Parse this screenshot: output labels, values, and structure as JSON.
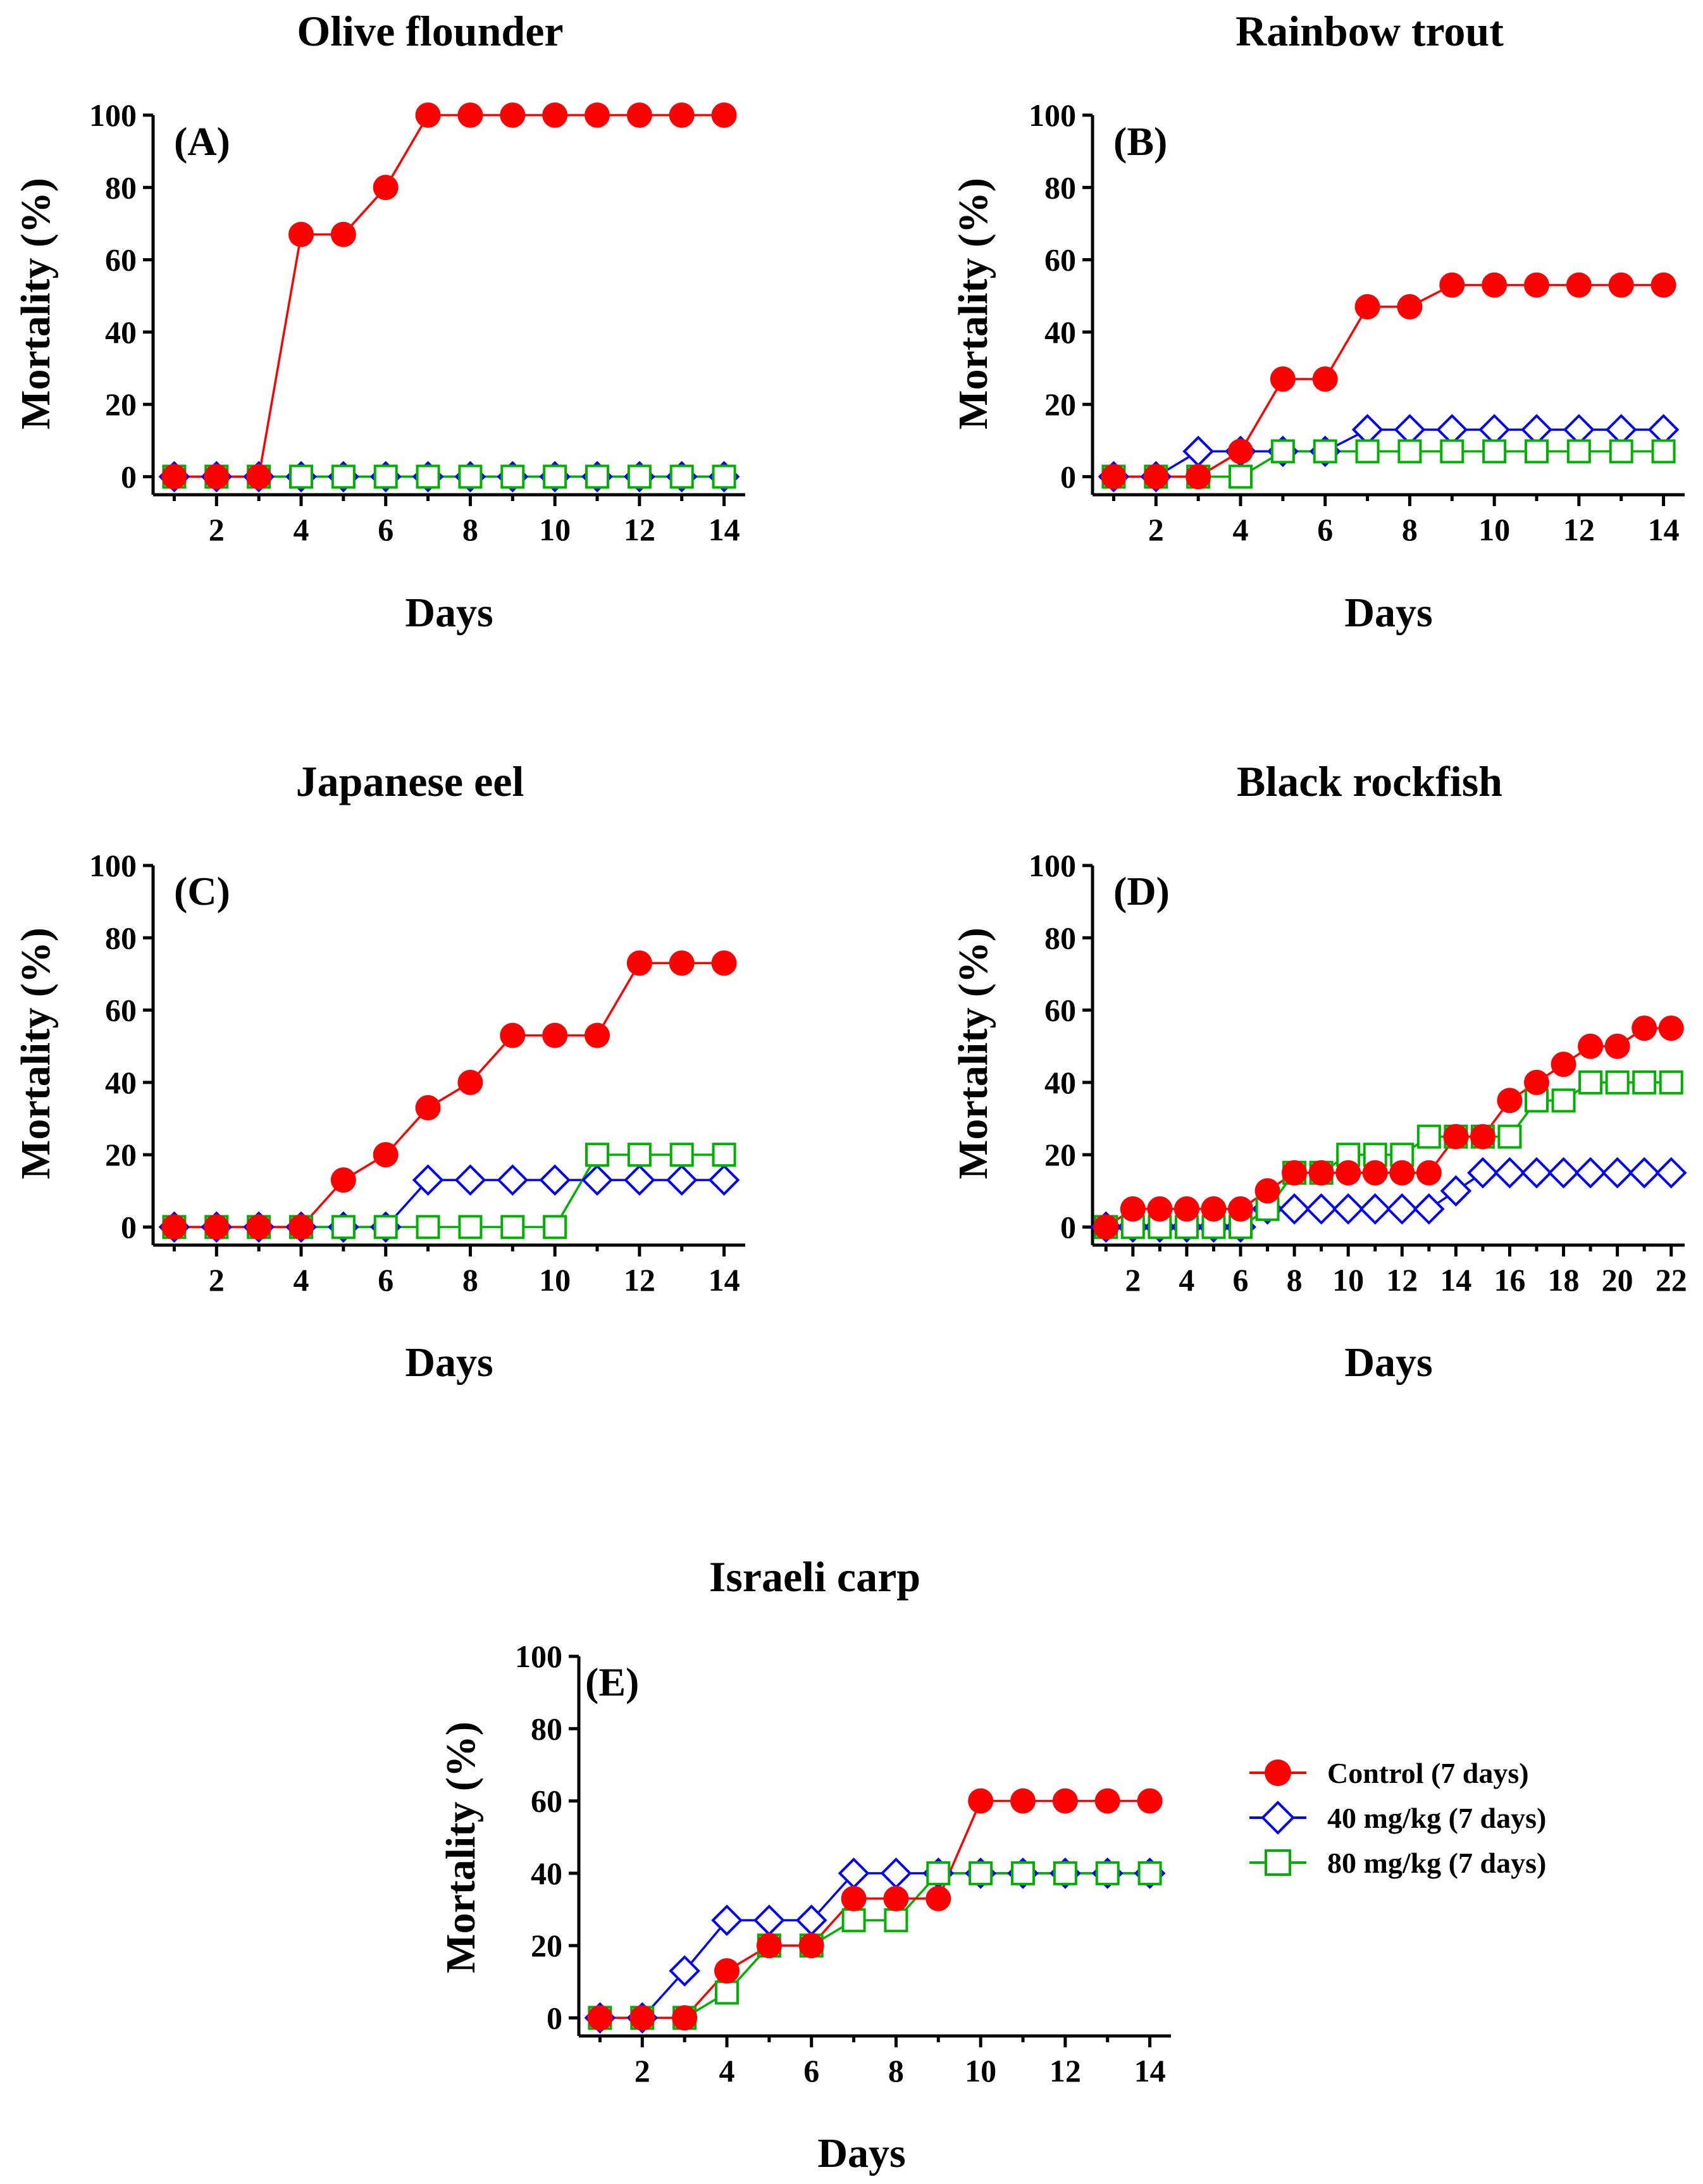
{
  "legend": [
    {
      "key": "control",
      "label": "Control (7 days)",
      "color": "#ff0000",
      "marker": "circle"
    },
    {
      "key": "mg40",
      "label": "40 mg/kg (7 days)",
      "color": "#0000ff",
      "marker": "diamond"
    },
    {
      "key": "mg80",
      "label": "80 mg/kg (7 days)",
      "color": "#00b000",
      "marker": "square"
    }
  ],
  "chart_data": [
    {
      "type": "line",
      "id": "A",
      "panel_label": "(A)",
      "title": "Olive flounder",
      "xlabel": "Days",
      "ylabel": "Mortality (%)",
      "xlim": [
        0.5,
        14.5
      ],
      "ylim": [
        -5,
        100
      ],
      "xticks": [
        2,
        4,
        6,
        8,
        10,
        12,
        14
      ],
      "yticks": [
        0,
        20,
        40,
        60,
        80,
        100
      ],
      "x": [
        1,
        2,
        3,
        4,
        5,
        6,
        7,
        8,
        9,
        10,
        11,
        12,
        13,
        14
      ],
      "series": [
        {
          "key": "control",
          "name": "Control (7 days)",
          "values": [
            0,
            0,
            0,
            67,
            67,
            80,
            100,
            100,
            100,
            100,
            100,
            100,
            100,
            100
          ]
        },
        {
          "key": "mg80",
          "name": "80 mg/kg (7 days)",
          "values": [
            0,
            0,
            0,
            0,
            0,
            0,
            0,
            0,
            0,
            0,
            0,
            0,
            0,
            0
          ]
        },
        {
          "key": "mg40",
          "name": "40 mg/kg (7 days)",
          "values": [
            0,
            0,
            0,
            0,
            0,
            0,
            0,
            0,
            0,
            0,
            0,
            0,
            0,
            0
          ]
        }
      ]
    },
    {
      "type": "line",
      "id": "B",
      "panel_label": "(B)",
      "title": "Rainbow trout",
      "xlabel": "Days",
      "ylabel": "Mortality (%)",
      "xlim": [
        0.5,
        14.5
      ],
      "ylim": [
        -5,
        100
      ],
      "xticks": [
        2,
        4,
        6,
        8,
        10,
        12,
        14
      ],
      "yticks": [
        0,
        20,
        40,
        60,
        80,
        100
      ],
      "x": [
        1,
        2,
        3,
        4,
        5,
        6,
        7,
        8,
        9,
        10,
        11,
        12,
        13,
        14
      ],
      "series": [
        {
          "key": "control",
          "name": "Control (7 days)",
          "values": [
            0,
            0,
            0,
            7,
            27,
            27,
            47,
            47,
            53,
            53,
            53,
            53,
            53,
            53
          ]
        },
        {
          "key": "mg80",
          "name": "80 mg/kg (7 days)",
          "values": [
            0,
            0,
            0,
            0,
            7,
            7,
            7,
            7,
            7,
            7,
            7,
            7,
            7,
            7
          ]
        },
        {
          "key": "mg40",
          "name": "40 mg/kg (7 days)",
          "values": [
            0,
            0,
            7,
            7,
            7,
            7,
            13,
            13,
            13,
            13,
            13,
            13,
            13,
            13
          ]
        }
      ]
    },
    {
      "type": "line",
      "id": "C",
      "panel_label": "(C)",
      "title": "Japanese eel",
      "xlabel": "Days",
      "ylabel": "Mortality (%)",
      "xlim": [
        0.5,
        14.5
      ],
      "ylim": [
        -5,
        100
      ],
      "xticks": [
        2,
        4,
        6,
        8,
        10,
        12,
        14
      ],
      "yticks": [
        0,
        20,
        40,
        60,
        80,
        100
      ],
      "x": [
        1,
        2,
        3,
        4,
        5,
        6,
        7,
        8,
        9,
        10,
        11,
        12,
        13,
        14
      ],
      "series": [
        {
          "key": "control",
          "name": "Control (7 days)",
          "values": [
            0,
            0,
            0,
            0,
            13,
            20,
            33,
            40,
            53,
            53,
            53,
            73,
            73,
            73
          ]
        },
        {
          "key": "mg80",
          "name": "80 mg/kg (7 days)",
          "values": [
            0,
            0,
            0,
            0,
            0,
            0,
            0,
            0,
            0,
            0,
            20,
            20,
            20,
            20
          ]
        },
        {
          "key": "mg40",
          "name": "40 mg/kg (7 days)",
          "values": [
            0,
            0,
            0,
            0,
            0,
            0,
            13,
            13,
            13,
            13,
            13,
            13,
            13,
            13
          ]
        }
      ]
    },
    {
      "type": "line",
      "id": "D",
      "panel_label": "(D)",
      "title": "Black rockfish",
      "xlabel": "Days",
      "ylabel": "Mortality (%)",
      "xlim": [
        0.5,
        22.5
      ],
      "ylim": [
        -5,
        100
      ],
      "xticks": [
        2,
        4,
        6,
        8,
        10,
        12,
        14,
        16,
        18,
        20,
        22
      ],
      "yticks": [
        0,
        20,
        40,
        60,
        80,
        100
      ],
      "x": [
        1,
        2,
        3,
        4,
        5,
        6,
        7,
        8,
        9,
        10,
        11,
        12,
        13,
        14,
        15,
        16,
        17,
        18,
        19,
        20,
        21,
        22
      ],
      "series": [
        {
          "key": "control",
          "name": "Control (7 days)",
          "values": [
            0,
            5,
            5,
            5,
            5,
            5,
            10,
            15,
            15,
            15,
            15,
            15,
            15,
            25,
            25,
            35,
            40,
            45,
            50,
            50,
            55,
            55
          ]
        },
        {
          "key": "mg80",
          "name": "80 mg/kg (7 days)",
          "values": [
            0,
            0,
            0,
            0,
            0,
            0,
            5,
            15,
            15,
            20,
            20,
            20,
            25,
            25,
            25,
            25,
            35,
            35,
            40,
            40,
            40,
            40
          ]
        },
        {
          "key": "mg40",
          "name": "40 mg/kg (7 days)",
          "values": [
            0,
            0,
            0,
            0,
            0,
            0,
            5,
            5,
            5,
            5,
            5,
            5,
            5,
            10,
            15,
            15,
            15,
            15,
            15,
            15,
            15,
            15
          ]
        }
      ]
    },
    {
      "type": "line",
      "id": "E",
      "panel_label": "(E)",
      "title": "Israeli carp",
      "xlabel": "Days",
      "ylabel": "Mortality (%)",
      "xlim": [
        0.5,
        14.5
      ],
      "ylim": [
        -5,
        100
      ],
      "xticks": [
        2,
        4,
        6,
        8,
        10,
        12,
        14
      ],
      "yticks": [
        0,
        20,
        40,
        60,
        80,
        100
      ],
      "x": [
        1,
        2,
        3,
        4,
        5,
        6,
        7,
        8,
        9,
        10,
        11,
        12,
        13,
        14
      ],
      "series": [
        {
          "key": "control",
          "name": "Control (7 days)",
          "values": [
            0,
            0,
            0,
            13,
            20,
            20,
            33,
            33,
            33,
            60,
            60,
            60,
            60,
            60
          ]
        },
        {
          "key": "mg80",
          "name": "80 mg/kg (7 days)",
          "values": [
            0,
            0,
            0,
            7,
            20,
            20,
            27,
            27,
            40,
            40,
            40,
            40,
            40,
            40
          ]
        },
        {
          "key": "mg40",
          "name": "40 mg/kg (7 days)",
          "values": [
            0,
            0,
            13,
            27,
            27,
            27,
            40,
            40,
            40,
            40,
            40,
            40,
            40,
            40
          ]
        }
      ]
    }
  ]
}
